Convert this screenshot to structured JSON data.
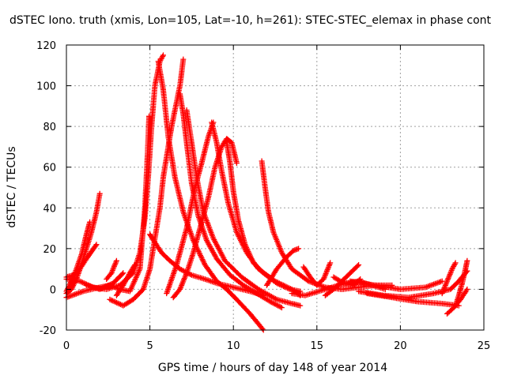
{
  "chart_data": {
    "type": "scatter",
    "title": "dSTEC Iono. truth (xmis, Lon=105, Lat=-10, h=261): STEC-STEC_elemax in phase cont",
    "xlabel": "GPS time / hours of day 148 of year 2014",
    "ylabel": "dSTEC  / TECUs",
    "xlim": [
      0,
      25
    ],
    "ylim": [
      -20,
      120
    ],
    "xticks": [
      0,
      5,
      10,
      15,
      20,
      25
    ],
    "yticks": [
      -20,
      0,
      20,
      40,
      60,
      80,
      100,
      120
    ],
    "grid": true,
    "marker": "+",
    "color": "#ff0000",
    "series": [
      {
        "x": [
          0,
          0.3,
          0.6,
          0.9,
          1.2,
          1.5,
          1.8,
          2.0
        ],
        "y": [
          -2,
          0,
          5,
          12,
          20,
          28,
          38,
          47
        ]
      },
      {
        "x": [
          0,
          0.3,
          0.6,
          0.9,
          1.2,
          1.4
        ],
        "y": [
          -1,
          4,
          10,
          17,
          27,
          33
        ]
      },
      {
        "x": [
          0,
          0.4,
          0.8,
          1.2,
          1.8
        ],
        "y": [
          6,
          7,
          10,
          15,
          22
        ]
      },
      {
        "x": [
          0,
          0.8,
          1.6,
          2.4,
          3.2,
          4.0,
          4.4,
          4.7,
          4.9,
          5.1,
          5.3,
          5.6,
          5.8
        ],
        "y": [
          5,
          4,
          1,
          0,
          2,
          8,
          18,
          35,
          55,
          80,
          100,
          112,
          115
        ]
      },
      {
        "x": [
          0,
          1,
          2,
          2.6,
          3.2,
          3.8,
          4.4,
          4.7,
          4.85,
          4.95
        ],
        "y": [
          -4,
          -1,
          1,
          2,
          0,
          -1,
          10,
          40,
          65,
          85
        ]
      },
      {
        "x": [
          1.2,
          2.0,
          2.8,
          3.4
        ],
        "y": [
          2,
          0,
          3,
          8
        ]
      },
      {
        "x": [
          2.4,
          2.7,
          3.0
        ],
        "y": [
          5,
          8,
          14
        ]
      },
      {
        "x": [
          2.6,
          3.4,
          4.0,
          4.6,
          5.0,
          5.3,
          5.6,
          5.8,
          6.1,
          6.3,
          6.5,
          6.8,
          7.0
        ],
        "y": [
          -5,
          -8,
          -5,
          0,
          10,
          25,
          40,
          55,
          70,
          80,
          88,
          100,
          113
        ]
      },
      {
        "x": [
          3.0,
          3.4,
          3.8,
          4.1
        ],
        "y": [
          -3,
          2,
          8,
          12
        ]
      },
      {
        "x": [
          5.5,
          5.8,
          6.1,
          6.5,
          7.0,
          7.6,
          8.3,
          9.0,
          9.6,
          10.2,
          11.0,
          11.8
        ],
        "y": [
          112,
          98,
          75,
          55,
          38,
          24,
          12,
          4,
          0,
          -5,
          -12,
          -20
        ]
      },
      {
        "x": [
          5.0,
          5.3,
          5.7,
          6.2,
          6.8,
          7.5,
          8.3,
          9.0,
          10.0,
          11.0,
          11.8
        ],
        "y": [
          27,
          23,
          18,
          14,
          10,
          7,
          5,
          3,
          1,
          -1,
          -3
        ]
      },
      {
        "x": [
          6.8,
          7.0,
          7.2,
          7.5,
          7.9,
          8.4,
          9.0,
          9.8,
          10.6,
          11.4,
          12.2,
          12.9
        ],
        "y": [
          96,
          86,
          72,
          52,
          36,
          24,
          15,
          7,
          2,
          -2,
          -6,
          -9
        ]
      },
      {
        "x": [
          7.2,
          7.5,
          7.8,
          8.2,
          8.8,
          9.5,
          10.5,
          11.5,
          12.6,
          13.5,
          14.0
        ],
        "y": [
          88,
          72,
          55,
          38,
          25,
          14,
          6,
          0,
          -5,
          -7,
          -8
        ]
      },
      {
        "x": [
          6.0,
          6.6,
          7.2,
          7.7,
          8.1,
          8.5,
          8.8
        ],
        "y": [
          -2,
          12,
          30,
          50,
          62,
          75,
          82
        ]
      },
      {
        "x": [
          6.4,
          6.8,
          7.2,
          7.6,
          8.0,
          8.5,
          8.9,
          9.3,
          9.6,
          9.9,
          10.2
        ],
        "y": [
          -4,
          0,
          8,
          18,
          30,
          45,
          60,
          70,
          74,
          72,
          62
        ]
      },
      {
        "x": [
          8.7,
          9.0,
          9.3,
          9.7,
          10.2,
          10.8,
          11.5,
          12.5,
          13.5,
          14.0
        ],
        "y": [
          82,
          72,
          58,
          42,
          28,
          18,
          10,
          4,
          0,
          -3
        ]
      },
      {
        "x": [
          9.6,
          9.8,
          10.0,
          10.3,
          10.7,
          11.2,
          11.8,
          12.6,
          13.4,
          14.0
        ],
        "y": [
          72,
          62,
          48,
          34,
          22,
          13,
          8,
          3,
          0,
          -1
        ]
      },
      {
        "x": [
          11.7,
          11.9,
          12.1,
          12.4,
          12.9,
          13.5,
          14.5,
          15.5,
          16.5,
          17.5,
          18.5,
          19.5
        ],
        "y": [
          63,
          50,
          38,
          28,
          18,
          10,
          4,
          1,
          0,
          1,
          2,
          2
        ]
      },
      {
        "x": [
          12.0,
          12.6,
          13.2,
          13.6,
          13.9
        ],
        "y": [
          2,
          10,
          16,
          19,
          20
        ]
      },
      {
        "x": [
          14.2,
          14.6,
          15.0,
          15.4,
          15.8
        ],
        "y": [
          11,
          6,
          2,
          5,
          13
        ]
      },
      {
        "x": [
          13.5,
          14.3,
          15.1,
          15.9,
          16.7,
          17.5,
          18.3,
          19.1
        ],
        "y": [
          -2,
          -3,
          -1,
          1,
          3,
          4,
          2,
          0
        ]
      },
      {
        "x": [
          15.5,
          16.0,
          16.5,
          17.0,
          17.5
        ],
        "y": [
          -3,
          0,
          4,
          8,
          12
        ]
      },
      {
        "x": [
          16.0,
          16.6,
          17.2,
          17.6
        ],
        "y": [
          6,
          3,
          2,
          5
        ]
      },
      {
        "x": [
          17.0,
          18.5,
          20.0,
          21.5,
          22.5
        ],
        "y": [
          4,
          2,
          0,
          1,
          4
        ]
      },
      {
        "x": [
          18.0,
          19.5,
          21.0,
          22.5,
          23.5
        ],
        "y": [
          -2,
          -4,
          -6,
          -7,
          -8
        ]
      },
      {
        "x": [
          17.5,
          19.0,
          20.5,
          22.0,
          23.0,
          23.5,
          24.0
        ],
        "y": [
          -1,
          -3,
          -4,
          -2,
          0,
          4,
          9
        ]
      },
      {
        "x": [
          22.5,
          22.8,
          23.1,
          23.3
        ],
        "y": [
          -2,
          4,
          10,
          13
        ]
      },
      {
        "x": [
          23.3,
          23.5,
          23.7,
          23.9,
          24.0
        ],
        "y": [
          -8,
          -3,
          3,
          10,
          14
        ]
      },
      {
        "x": [
          22.8,
          23.2,
          23.6,
          24.0
        ],
        "y": [
          -12,
          -9,
          -5,
          0
        ]
      }
    ]
  }
}
